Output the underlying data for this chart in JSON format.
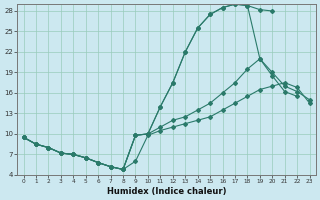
{
  "xlabel": "Humidex (Indice chaleur)",
  "bg_color": "#cce8f0",
  "grid_color": "#99ccbb",
  "line_color": "#2a7a6a",
  "xlim": [
    -0.5,
    23.5
  ],
  "ylim": [
    4,
    29
  ],
  "yticks": [
    4,
    7,
    10,
    13,
    16,
    19,
    22,
    25,
    28
  ],
  "xticks": [
    0,
    1,
    2,
    3,
    4,
    5,
    6,
    7,
    8,
    9,
    10,
    11,
    12,
    13,
    14,
    15,
    16,
    17,
    18,
    19,
    20,
    21,
    22,
    23
  ],
  "line1_x": [
    0,
    1,
    2,
    3,
    4,
    5,
    6,
    7,
    8,
    9,
    10,
    11,
    12,
    13,
    14,
    15,
    16,
    17,
    18,
    19,
    20
  ],
  "line1_y": [
    9.5,
    8.5,
    8.0,
    7.2,
    7.0,
    6.5,
    5.8,
    5.2,
    4.8,
    9.8,
    10.0,
    14.0,
    17.5,
    22.0,
    25.5,
    27.5,
    28.5,
    29.0,
    28.8,
    28.2,
    28.0
  ],
  "line2_x": [
    0,
    1,
    2,
    3,
    4,
    5,
    6,
    7,
    8,
    9,
    10,
    11,
    12,
    13,
    14,
    15,
    16,
    17,
    18,
    19,
    20,
    21,
    22
  ],
  "line2_y": [
    9.5,
    8.5,
    8.0,
    7.2,
    7.0,
    6.5,
    5.8,
    5.2,
    4.8,
    9.8,
    10.0,
    14.0,
    17.5,
    22.0,
    25.5,
    27.5,
    28.5,
    29.0,
    28.8,
    21.0,
    18.5,
    16.2,
    15.5
  ],
  "line3_x": [
    0,
    1,
    2,
    3,
    4,
    5,
    6,
    7,
    8,
    9,
    10,
    11,
    12,
    13,
    14,
    15,
    16,
    17,
    18,
    19,
    20,
    21,
    22,
    23
  ],
  "line3_y": [
    9.5,
    8.5,
    8.0,
    7.2,
    7.0,
    6.5,
    5.8,
    5.2,
    4.8,
    9.8,
    10.0,
    11.0,
    12.0,
    12.5,
    13.5,
    14.5,
    16.0,
    17.5,
    19.5,
    21.0,
    19.0,
    17.0,
    16.2,
    15.0
  ],
  "line4_x": [
    0,
    1,
    2,
    3,
    4,
    5,
    6,
    7,
    8,
    9,
    10,
    11,
    12,
    13,
    14,
    15,
    16,
    17,
    18,
    19,
    20,
    21,
    22,
    23
  ],
  "line4_y": [
    9.5,
    8.5,
    8.0,
    7.2,
    7.0,
    6.5,
    5.8,
    5.2,
    4.8,
    6.0,
    9.8,
    10.5,
    11.0,
    11.5,
    12.0,
    12.5,
    13.5,
    14.5,
    15.5,
    16.5,
    17.0,
    17.5,
    16.8,
    14.5
  ]
}
